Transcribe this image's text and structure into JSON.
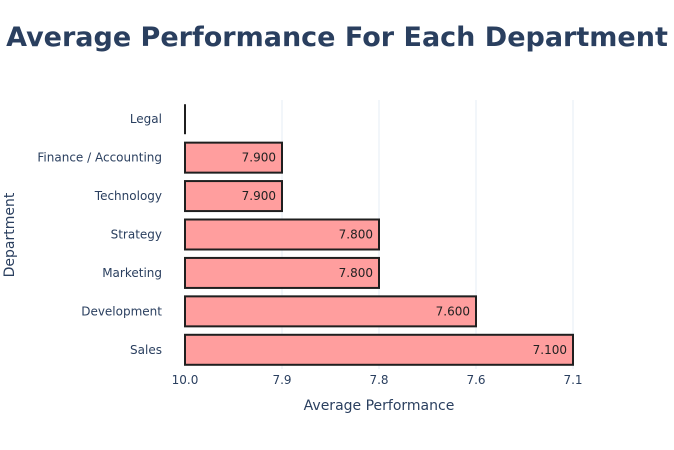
{
  "chart_data": {
    "type": "bar",
    "orientation": "horizontal",
    "title": "Average Performance For Each Department",
    "xlabel": "Average Performance",
    "ylabel": "Department",
    "categories": [
      "Legal",
      "Finance / Accounting",
      "Technology",
      "Strategy",
      "Marketing",
      "Development",
      "Sales"
    ],
    "values": [
      10.0,
      7.9,
      7.9,
      7.8,
      7.8,
      7.6,
      7.1
    ],
    "value_labels": [
      "",
      "7.900",
      "7.900",
      "7.800",
      "7.800",
      "7.600",
      "7.100"
    ],
    "x_ticks": [
      10.0,
      7.9,
      7.8,
      7.6,
      7.1
    ],
    "x_tick_labels": [
      "10.0",
      "7.9",
      "7.8",
      "7.6",
      "7.1"
    ],
    "grid": true,
    "colors": {
      "bar_fill": "#ff9e9e",
      "bar_stroke": "#1f1f1f",
      "text": "#2a3f5f",
      "grid": "#e5ecf6"
    }
  }
}
